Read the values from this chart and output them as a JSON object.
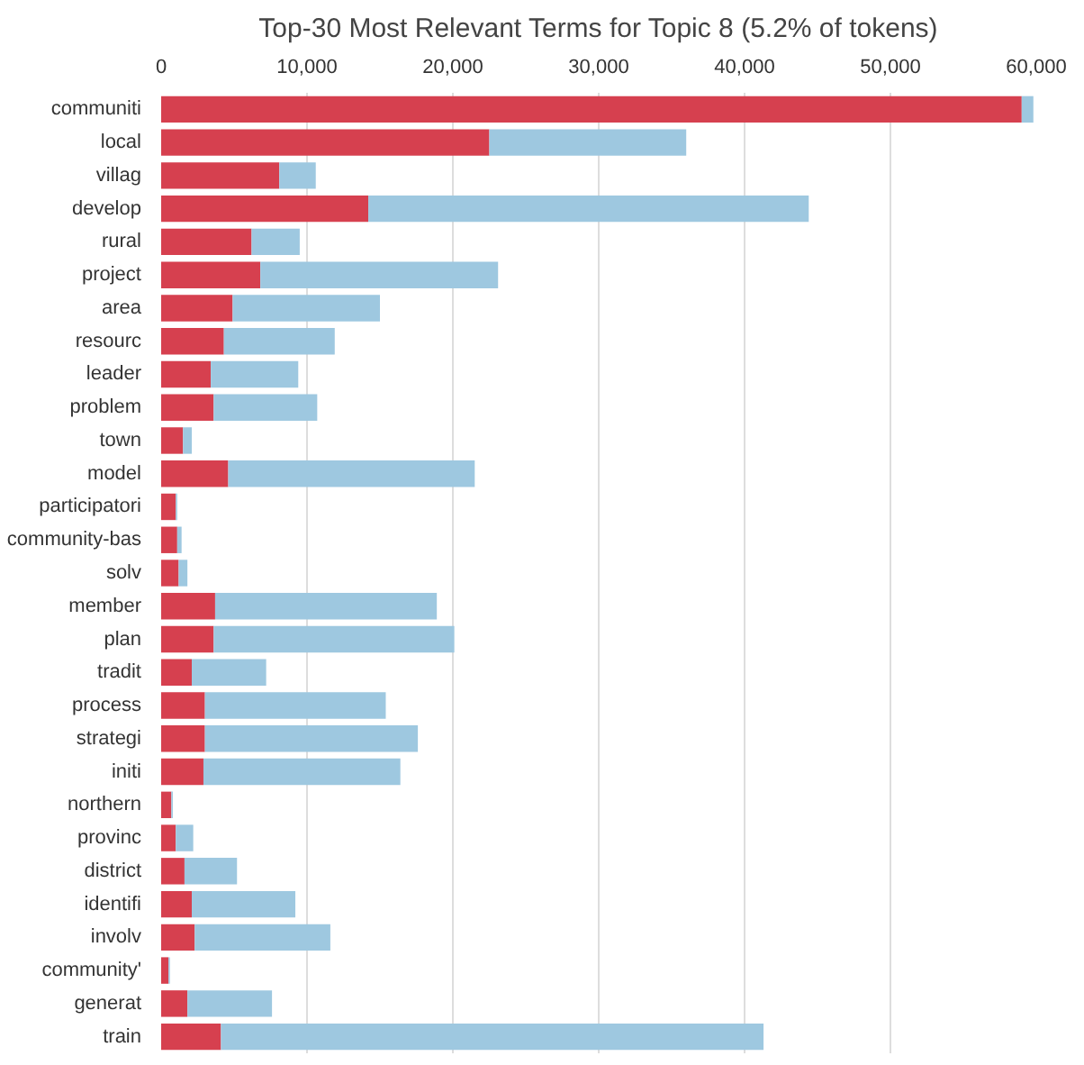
{
  "chart_data": {
    "type": "bar",
    "orientation": "horizontal",
    "title": "Top-30 Most Relevant Terms for Topic 8 (5.2% of tokens)",
    "categories": [
      "communiti",
      "local",
      "villag",
      "develop",
      "rural",
      "project",
      "area",
      "resourc",
      "leader",
      "problem",
      "town",
      "model",
      "participatori",
      "community-bas",
      "solv",
      "member",
      "plan",
      "tradit",
      "process",
      "strategi",
      "initi",
      "northern",
      "provinc",
      "district",
      "identifi",
      "involv",
      "community'",
      "generat",
      "train"
    ],
    "series": [
      {
        "color": "#d6404f",
        "values": [
          59000,
          22500,
          8100,
          14200,
          6200,
          6800,
          4900,
          4300,
          3400,
          3600,
          1500,
          4600,
          1000,
          1100,
          1200,
          3700,
          3600,
          2100,
          3000,
          3000,
          2900,
          700,
          1000,
          1600,
          2100,
          2300,
          500,
          1800,
          4100
        ]
      },
      {
        "color": "#9ec8e0",
        "values": [
          800,
          13500,
          2500,
          30200,
          3300,
          16300,
          10100,
          7600,
          6000,
          7100,
          600,
          16900,
          100,
          300,
          600,
          15200,
          16500,
          5100,
          12400,
          14600,
          13500,
          100,
          1200,
          3600,
          7100,
          9300,
          100,
          5800,
          37200
        ]
      }
    ],
    "stacked": true,
    "xlim": [
      0,
      60000
    ],
    "xticks": [
      0,
      {
        "value": 10000,
        "label": "10,000"
      },
      {
        "value": 20000,
        "label": "20,000"
      },
      {
        "value": 30000,
        "label": "30,000"
      },
      {
        "value": 40000,
        "label": "40,000"
      },
      {
        "value": 50000,
        "label": "50,000"
      },
      {
        "value": 60000,
        "label": "60,000"
      }
    ],
    "grid": "x"
  }
}
